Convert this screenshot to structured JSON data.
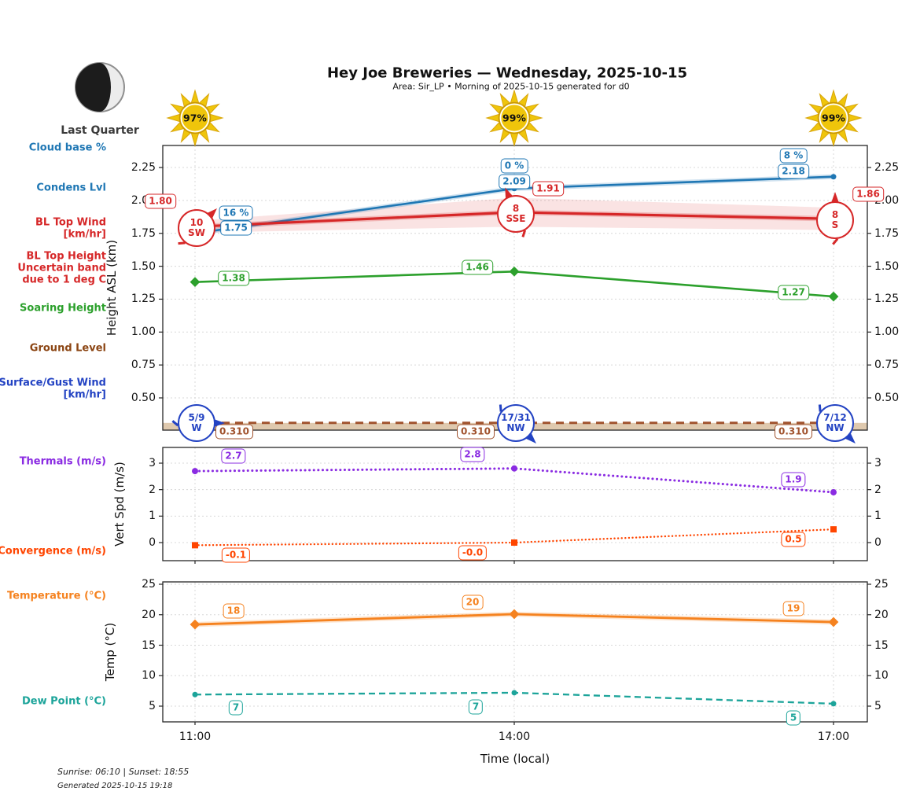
{
  "header": {
    "title": "Hey Joe Breweries — Wednesday, 2025-10-15",
    "subtitle": "Area: Sir_LP • Morning of 2025-10-15 generated for d0"
  },
  "moon": {
    "phase_label": "Last Quarter"
  },
  "suns": [
    "97%",
    "99%",
    "99%"
  ],
  "series_labels": {
    "cloud_base": "Cloud base %",
    "condens_lvl": "Condens Lvl",
    "bl_top_wind_line1": "BL Top Wind",
    "bl_top_wind_line2": "[km/hr]",
    "bl_top_height_line1": "BL Top Height",
    "bl_top_height_line2": "Uncertain band",
    "bl_top_height_line3": "due to 1 deg C",
    "soaring_height": "Soaring Height",
    "ground_level": "Ground Level",
    "surface_wind_line1": "Surface/Gust Wind",
    "surface_wind_line2": "[km/hr]",
    "thermals": "Thermals (m/s)",
    "convergence": "Convergence (m/s)",
    "temperature": "Temperature (°C)",
    "dew_point": "Dew Point (°C)"
  },
  "axes": {
    "height_label": "Height ASL (km)",
    "vertspd_label": "Vert Spd (m/s)",
    "temp_label": "Temp (°C)",
    "x_label": "Time (local)",
    "x_ticks": [
      "11:00",
      "14:00",
      "17:00"
    ],
    "height_ticks": [
      "2.25",
      "2.00",
      "1.75",
      "1.50",
      "1.25",
      "1.00",
      "0.75",
      "0.50"
    ],
    "vertspd_ticks": [
      "3",
      "2",
      "1",
      "0"
    ],
    "temp_ticks": [
      "25",
      "20",
      "15",
      "10",
      "5"
    ]
  },
  "chart_data": [
    {
      "type": "line",
      "x": [
        "11:00",
        "14:00",
        "17:00"
      ],
      "ylabel": "Height ASL (km)",
      "ylim": [
        0.25,
        2.42
      ],
      "series": [
        {
          "name": "Condens Lvl",
          "color": "#1f77b4",
          "values": [
            1.75,
            2.09,
            2.18
          ],
          "labels": [
            "1.75",
            "2.09",
            "2.18"
          ]
        },
        {
          "name": "Cloud base %",
          "color": "#1f77b4",
          "point_labels": [
            "16 %",
            "0 %",
            "8 %"
          ]
        },
        {
          "name": "BL Top Height",
          "color": "#d62728",
          "values": [
            1.8,
            1.91,
            1.86
          ],
          "labels": [
            "1.80",
            "1.91",
            "1.86"
          ],
          "uncertainty_band": [
            0.045,
            0.11,
            0.085
          ]
        },
        {
          "name": "BL Top Wind [km/hr]",
          "color": "#d62728",
          "wind": [
            {
              "speed": "10",
              "dir": "SW"
            },
            {
              "speed": "8",
              "dir": "SSE"
            },
            {
              "speed": "8",
              "dir": "S"
            }
          ]
        },
        {
          "name": "Soaring Height",
          "color": "#2ca02c",
          "values": [
            1.38,
            1.46,
            1.27
          ],
          "labels": [
            "1.38",
            "1.46",
            "1.27"
          ]
        },
        {
          "name": "Ground Level",
          "color": "#A0522D",
          "values": [
            0.31,
            0.31,
            0.31
          ],
          "labels": [
            "0.310",
            "0.310",
            "0.310"
          ]
        },
        {
          "name": "Surface/Gust Wind [km/hr]",
          "color": "#2343c3",
          "wind": [
            {
              "speed": "5/9",
              "dir": "W"
            },
            {
              "speed": "17/31",
              "dir": "NW"
            },
            {
              "speed": "7/12",
              "dir": "NW"
            }
          ]
        }
      ]
    },
    {
      "type": "line",
      "x": [
        "11:00",
        "14:00",
        "17:00"
      ],
      "ylabel": "Vert Spd (m/s)",
      "ylim": [
        -0.7,
        3.6
      ],
      "series": [
        {
          "name": "Thermals (m/s)",
          "color": "#8A2BE2",
          "values": [
            2.7,
            2.8,
            1.9
          ],
          "labels": [
            "2.7",
            "2.8",
            "1.9"
          ]
        },
        {
          "name": "Convergence (m/s)",
          "color": "#FF4500",
          "values": [
            -0.1,
            0.0,
            0.5
          ],
          "labels": [
            "-0.1",
            "-0.0",
            "0.5"
          ]
        }
      ]
    },
    {
      "type": "line",
      "x": [
        "11:00",
        "14:00",
        "17:00"
      ],
      "ylabel": "Temp (°C)",
      "ylim": [
        2.5,
        25.5
      ],
      "series": [
        {
          "name": "Temperature (°C)",
          "color": "#F5821F",
          "values": [
            18.4,
            20.1,
            18.8
          ],
          "labels": [
            "18",
            "20",
            "19"
          ]
        },
        {
          "name": "Dew Point (°C)",
          "color": "#1CA49A",
          "values": [
            6.9,
            7.2,
            5.4
          ],
          "labels": [
            "7",
            "7",
            "5"
          ]
        }
      ]
    }
  ],
  "colors": {
    "condens_blue": "#1f77b4",
    "bl_red": "#d62728",
    "soaring_green": "#2ca02c",
    "ground_brown": "#A0522D",
    "surface_blue": "#2343c3",
    "thermals_purple": "#8A2BE2",
    "convergence_orangered": "#FF4500",
    "temperature_orange": "#F5821F",
    "dew_teal": "#1CA49A",
    "sun_gold": "#EFC50B"
  },
  "footer": {
    "sun_times": "Sunrise: 06:10 | Sunset: 18:55",
    "generated": "Generated 2025-10-15 19:18"
  }
}
